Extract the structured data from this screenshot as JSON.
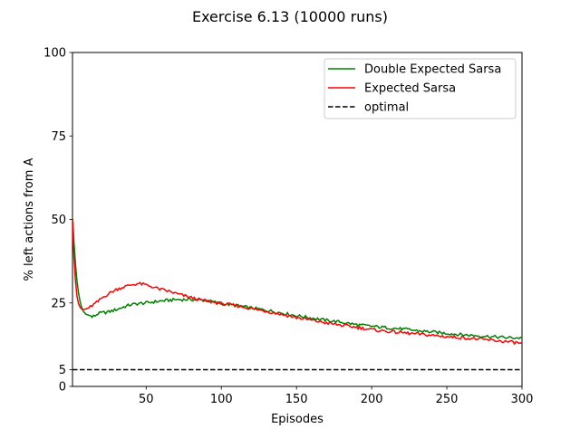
{
  "chart_data": {
    "type": "line",
    "title": "Exercise 6.13 (10000 runs)",
    "xlabel": "Episodes",
    "ylabel": "% left actions from A",
    "xlim": [
      1,
      300
    ],
    "ylim": [
      0,
      100
    ],
    "xticks": [
      50,
      100,
      150,
      200,
      250,
      300
    ],
    "yticks": [
      0,
      5,
      25,
      50,
      75,
      100
    ],
    "grid": false,
    "legend_position": "top-right",
    "series": [
      {
        "name": "Double Expected Sarsa",
        "color": "#008000",
        "line_style": "solid",
        "x": [
          1,
          2,
          3,
          4,
          5,
          6,
          7,
          8,
          10,
          12,
          14,
          16,
          18,
          20,
          25,
          30,
          35,
          40,
          45,
          50,
          55,
          60,
          65,
          70,
          75,
          80,
          85,
          90,
          95,
          100,
          110,
          120,
          130,
          140,
          150,
          160,
          170,
          180,
          190,
          200,
          210,
          220,
          230,
          240,
          250,
          260,
          270,
          280,
          290,
          300
        ],
        "values": [
          50.5,
          43.0,
          36.5,
          31.5,
          28.0,
          25.5,
          23.8,
          22.6,
          21.6,
          21.3,
          20.8,
          21.2,
          21.8,
          22.0,
          22.3,
          23.0,
          23.8,
          24.5,
          24.8,
          25.0,
          25.3,
          25.6,
          25.8,
          26.0,
          26.0,
          26.0,
          25.9,
          25.7,
          25.3,
          24.8,
          24.2,
          23.5,
          22.8,
          22.0,
          21.2,
          20.5,
          19.8,
          19.2,
          18.5,
          18.0,
          17.6,
          17.2,
          16.7,
          16.3,
          15.9,
          15.5,
          15.2,
          14.9,
          14.6,
          14.5
        ]
      },
      {
        "name": "Expected Sarsa",
        "color": "#ff0000",
        "line_style": "solid",
        "x": [
          1,
          2,
          3,
          4,
          5,
          6,
          7,
          8,
          10,
          12,
          15,
          18,
          20,
          25,
          30,
          35,
          40,
          45,
          50,
          55,
          60,
          65,
          70,
          75,
          80,
          85,
          90,
          95,
          100,
          110,
          120,
          130,
          140,
          150,
          160,
          170,
          180,
          190,
          200,
          210,
          220,
          230,
          240,
          250,
          260,
          270,
          280,
          290,
          300
        ],
        "values": [
          50.0,
          38.5,
          31.5,
          27.0,
          24.8,
          23.8,
          23.2,
          23.0,
          23.2,
          23.6,
          24.5,
          25.4,
          26.3,
          27.8,
          29.0,
          29.8,
          30.4,
          30.8,
          30.4,
          29.7,
          29.0,
          28.5,
          27.8,
          27.2,
          26.6,
          26.0,
          25.6,
          25.2,
          24.8,
          24.2,
          23.3,
          22.5,
          21.6,
          20.6,
          19.8,
          19.0,
          18.3,
          17.7,
          17.0,
          16.5,
          16.1,
          15.7,
          15.3,
          14.9,
          14.6,
          14.2,
          13.8,
          13.4,
          12.9
        ]
      },
      {
        "name": "optimal",
        "color": "#000000",
        "line_style": "dashed",
        "x": [
          1,
          300
        ],
        "values": [
          5,
          5
        ]
      }
    ]
  }
}
